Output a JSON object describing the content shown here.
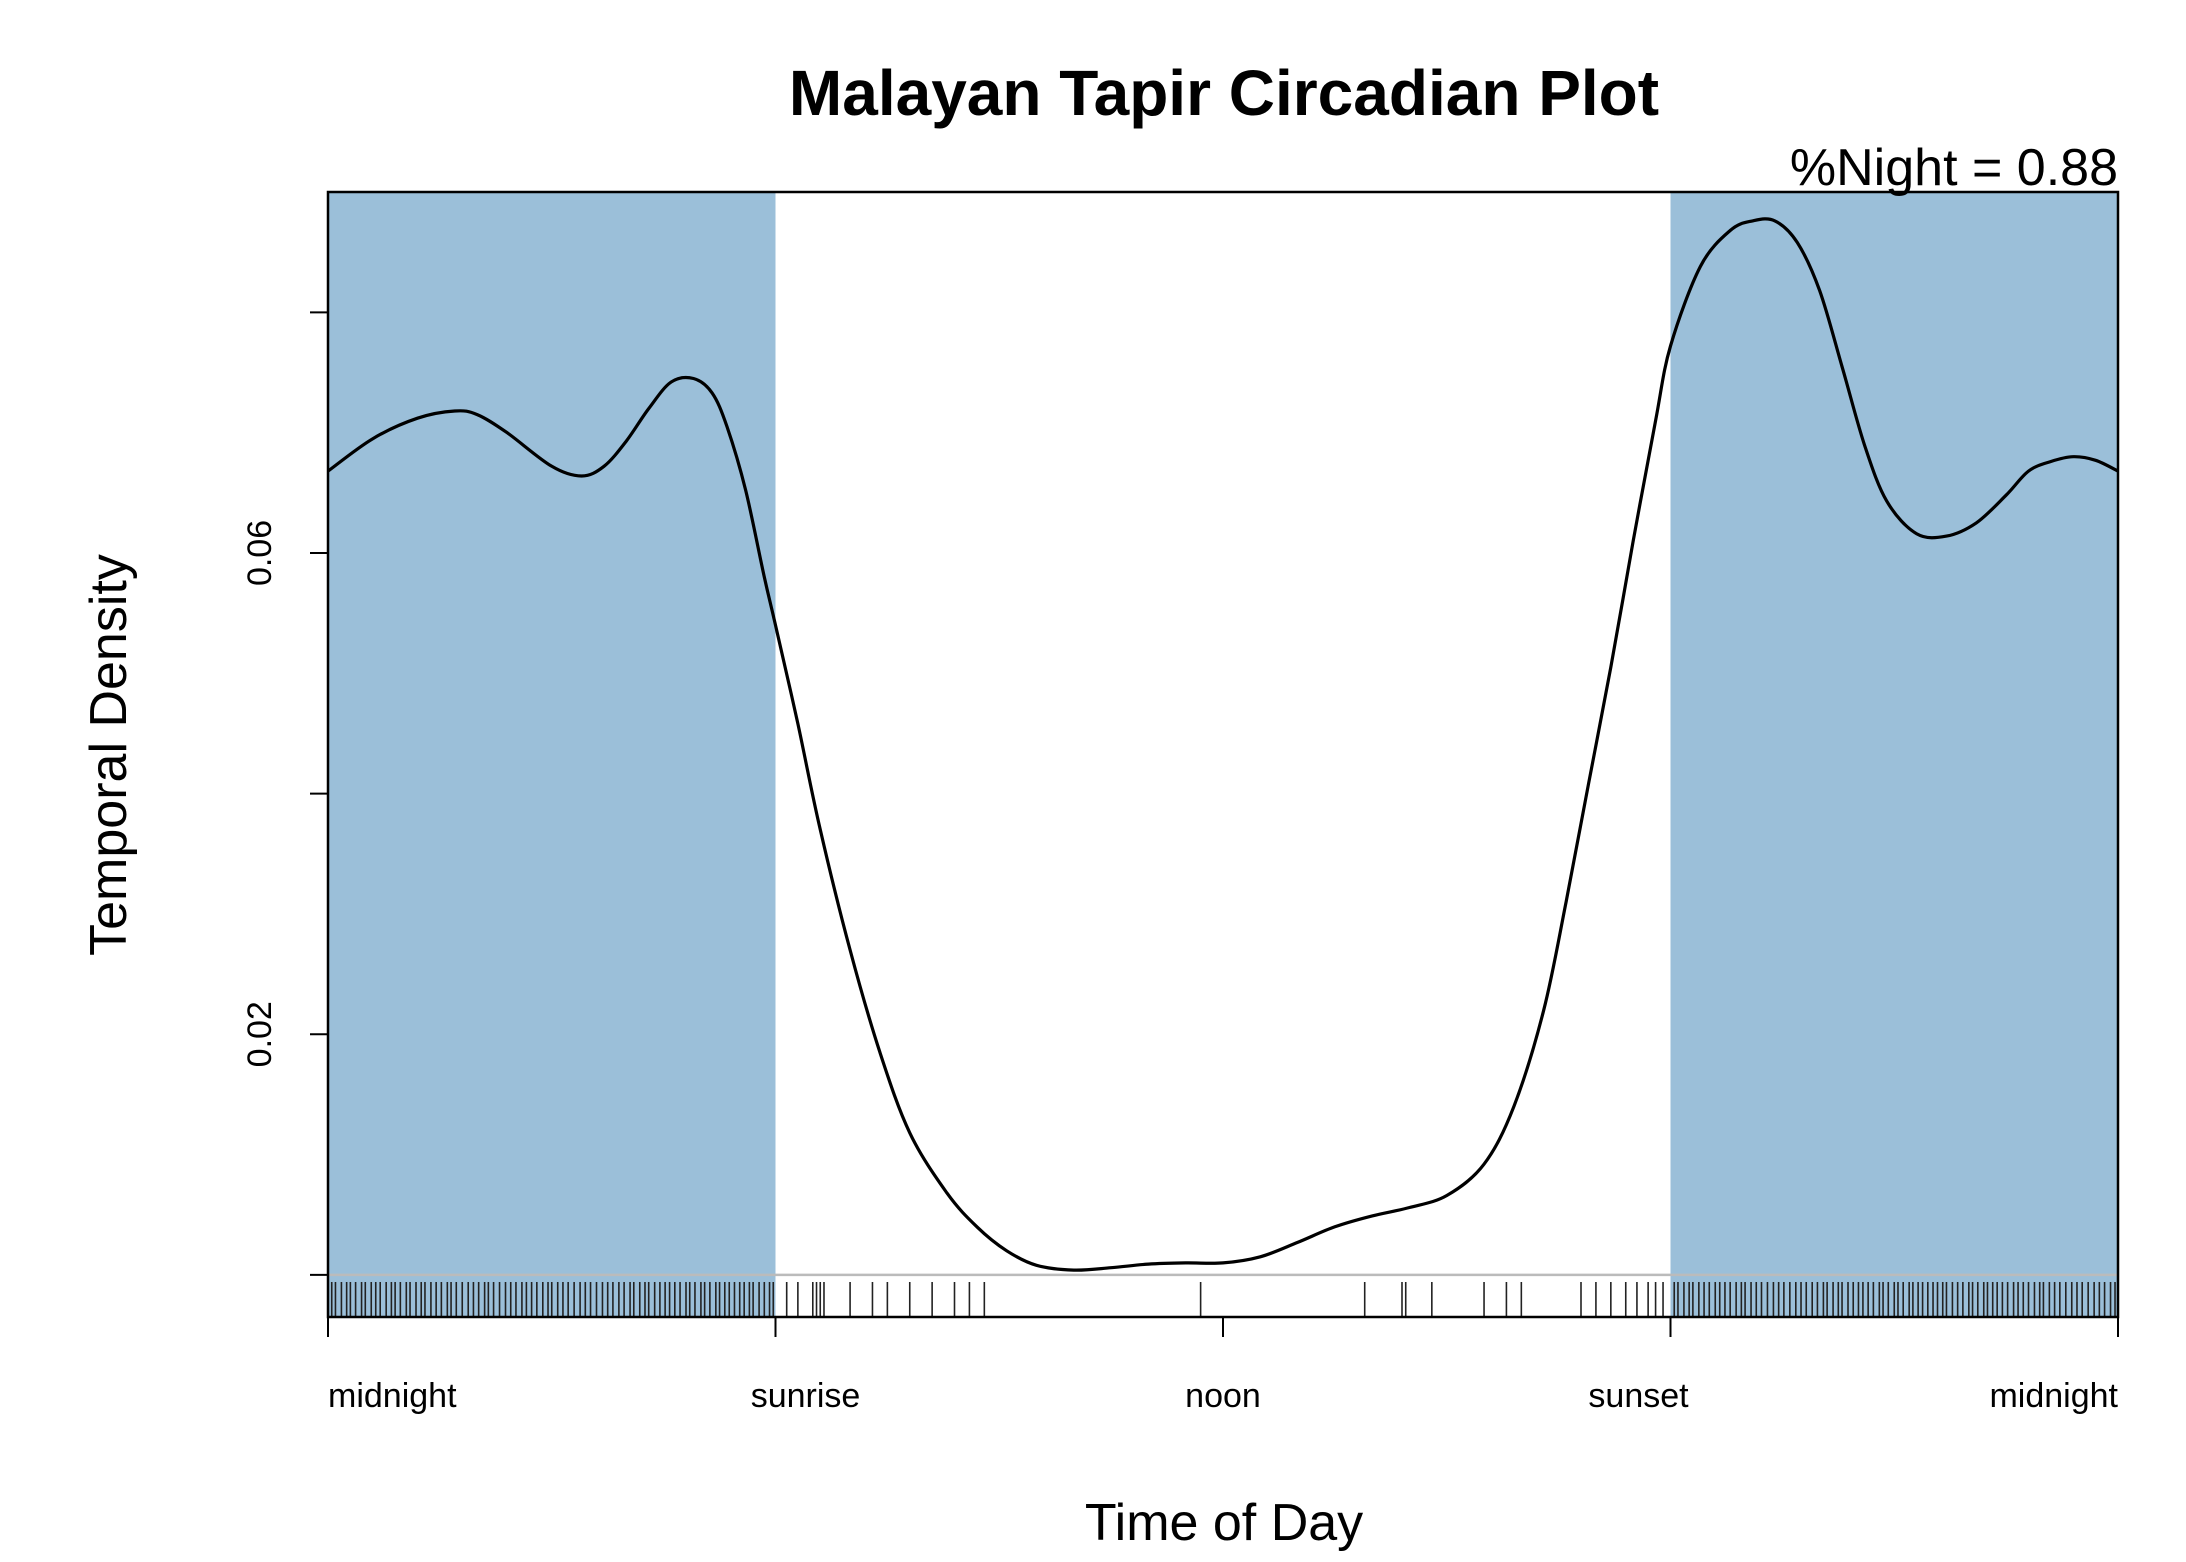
{
  "chart_data": {
    "type": "line",
    "title": "Malayan Tapir Circadian Plot",
    "annotation": "%Night = 0.88",
    "xlabel": "Time of Day",
    "ylabel": "Temporal Density",
    "x_unit": "hours",
    "xlim": [
      0,
      24
    ],
    "ylim": [
      -0.0035,
      0.09
    ],
    "x_ticks": [
      {
        "value": 0,
        "label": "midnight"
      },
      {
        "value": 6,
        "label": "sunrise"
      },
      {
        "value": 12,
        "label": "noon"
      },
      {
        "value": 18,
        "label": "sunset"
      },
      {
        "value": 24,
        "label": "midnight"
      }
    ],
    "y_ticks": [
      {
        "value": 0.0,
        "label": ""
      },
      {
        "value": 0.02,
        "label": "0.02"
      },
      {
        "value": 0.04,
        "label": ""
      },
      {
        "value": 0.06,
        "label": "0.06"
      },
      {
        "value": 0.08,
        "label": ""
      }
    ],
    "night_shading": [
      {
        "from": 0,
        "to": 6,
        "color": "#9bbfd9"
      },
      {
        "from": 18,
        "to": 24,
        "color": "#9bbfd9"
      }
    ],
    "series": [
      {
        "color": "#000000",
        "x": [
          0,
          0.6,
          1.2,
          1.7,
          2.0,
          2.4,
          3.0,
          3.4,
          3.7,
          4.0,
          4.3,
          4.6,
          4.9,
          5.15,
          5.35,
          5.6,
          5.85,
          6.0,
          6.3,
          6.6,
          7.0,
          7.4,
          7.8,
          8.3,
          8.7,
          9.1,
          9.5,
          10.0,
          10.5,
          11.0,
          11.5,
          12.0,
          12.5,
          13.0,
          13.5,
          14.0,
          14.5,
          15.0,
          15.5,
          15.9,
          16.3,
          16.6,
          16.9,
          17.2,
          17.5,
          17.8,
          18.0,
          18.4,
          18.8,
          19.1,
          19.4,
          19.7,
          20.0,
          20.3,
          20.6,
          20.9,
          21.3,
          21.7,
          22.1,
          22.5,
          22.8,
          23.1,
          23.4,
          23.7,
          24.0
        ],
        "y": [
          0.0668,
          0.0695,
          0.0712,
          0.0718,
          0.0715,
          0.07,
          0.0672,
          0.0664,
          0.0672,
          0.0693,
          0.072,
          0.0742,
          0.0745,
          0.0733,
          0.0705,
          0.0652,
          0.058,
          0.054,
          0.0458,
          0.037,
          0.027,
          0.0185,
          0.0118,
          0.0068,
          0.004,
          0.002,
          0.0008,
          0.0004,
          0.0006,
          0.0009,
          0.001,
          0.001,
          0.0015,
          0.0027,
          0.004,
          0.0049,
          0.0056,
          0.0066,
          0.0092,
          0.014,
          0.022,
          0.031,
          0.0408,
          0.0505,
          0.061,
          0.071,
          0.0772,
          0.0838,
          0.0868,
          0.0876,
          0.0876,
          0.0858,
          0.0818,
          0.0755,
          0.069,
          0.0643,
          0.0616,
          0.0614,
          0.0625,
          0.0648,
          0.0668,
          0.0676,
          0.068,
          0.0677,
          0.0668
        ]
      }
    ],
    "rug_times": [
      0.05,
      0.1,
      0.18,
      0.25,
      0.3,
      0.37,
      0.45,
      0.5,
      0.58,
      0.64,
      0.7,
      0.78,
      0.85,
      0.9,
      0.97,
      1.05,
      1.1,
      1.18,
      1.25,
      1.3,
      1.38,
      1.45,
      1.52,
      1.6,
      1.65,
      1.72,
      1.8,
      1.88,
      1.95,
      2.02,
      2.1,
      2.15,
      2.22,
      2.3,
      2.38,
      2.45,
      2.52,
      2.6,
      2.66,
      2.73,
      2.8,
      2.88,
      2.95,
      3.0,
      3.08,
      3.15,
      3.22,
      3.3,
      3.38,
      3.45,
      3.52,
      3.6,
      3.68,
      3.75,
      3.82,
      3.9,
      3.97,
      4.05,
      4.1,
      4.18,
      4.25,
      4.3,
      4.38,
      4.45,
      4.52,
      4.58,
      4.65,
      4.72,
      4.8,
      4.85,
      4.92,
      5.0,
      5.05,
      5.12,
      5.2,
      5.25,
      5.32,
      5.38,
      5.45,
      5.52,
      5.58,
      5.65,
      5.7,
      5.78,
      5.85,
      5.92,
      5.97,
      6.15,
      6.3,
      6.5,
      6.55,
      6.6,
      6.65,
      7.0,
      7.3,
      7.5,
      7.8,
      8.1,
      8.4,
      8.6,
      8.8,
      11.7,
      13.9,
      14.4,
      14.45,
      14.8,
      15.5,
      15.8,
      16.0,
      16.8,
      17.0,
      17.2,
      17.4,
      17.55,
      17.7,
      17.8,
      17.9,
      18.05,
      18.1,
      18.18,
      18.25,
      18.3,
      18.38,
      18.45,
      18.52,
      18.6,
      18.66,
      18.73,
      18.8,
      18.88,
      18.95,
      19.0,
      19.08,
      19.15,
      19.22,
      19.3,
      19.38,
      19.45,
      19.52,
      19.6,
      19.68,
      19.75,
      19.82,
      19.9,
      19.97,
      20.05,
      20.1,
      20.18,
      20.25,
      20.3,
      20.38,
      20.45,
      20.52,
      20.58,
      20.65,
      20.72,
      20.8,
      20.85,
      20.92,
      21.0,
      21.05,
      21.12,
      21.2,
      21.25,
      21.32,
      21.38,
      21.45,
      21.52,
      21.58,
      21.65,
      21.7,
      21.78,
      21.85,
      21.92,
      22.0,
      22.05,
      22.12,
      22.2,
      22.25,
      22.32,
      22.38,
      22.45,
      22.52,
      22.6,
      22.66,
      22.73,
      22.8,
      22.88,
      22.95,
      23.0,
      23.08,
      23.15,
      23.22,
      23.3,
      23.38,
      23.45,
      23.52,
      23.6,
      23.68,
      23.75,
      23.82,
      23.9,
      23.96
    ],
    "grid": false,
    "legend": "none"
  }
}
